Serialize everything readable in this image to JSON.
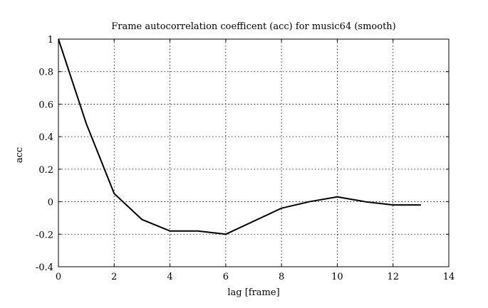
{
  "chart_data": {
    "type": "line",
    "title": "Frame autocorrelation coefficent (acc) for music64 (smooth)",
    "xlabel": "lag [frame]",
    "ylabel": "acc",
    "xlim": [
      0,
      14
    ],
    "ylim": [
      -0.4,
      1
    ],
    "xticks": [
      "0",
      "2",
      "4",
      "6",
      "8",
      "10",
      "12",
      "14"
    ],
    "yticks": [
      "-0.4",
      "-0.2",
      "0",
      "0.2",
      "0.4",
      "0.6",
      "0.8",
      "1"
    ],
    "grid": true,
    "series": [
      {
        "x": [
          0,
          1,
          2,
          3,
          4,
          5,
          6,
          7,
          8,
          9,
          10,
          11,
          12,
          13
        ],
        "values": [
          1.0,
          0.48,
          0.05,
          -0.11,
          -0.18,
          -0.18,
          -0.2,
          -0.12,
          -0.04,
          0.0,
          0.03,
          0.0,
          -0.02,
          -0.02
        ]
      }
    ]
  }
}
